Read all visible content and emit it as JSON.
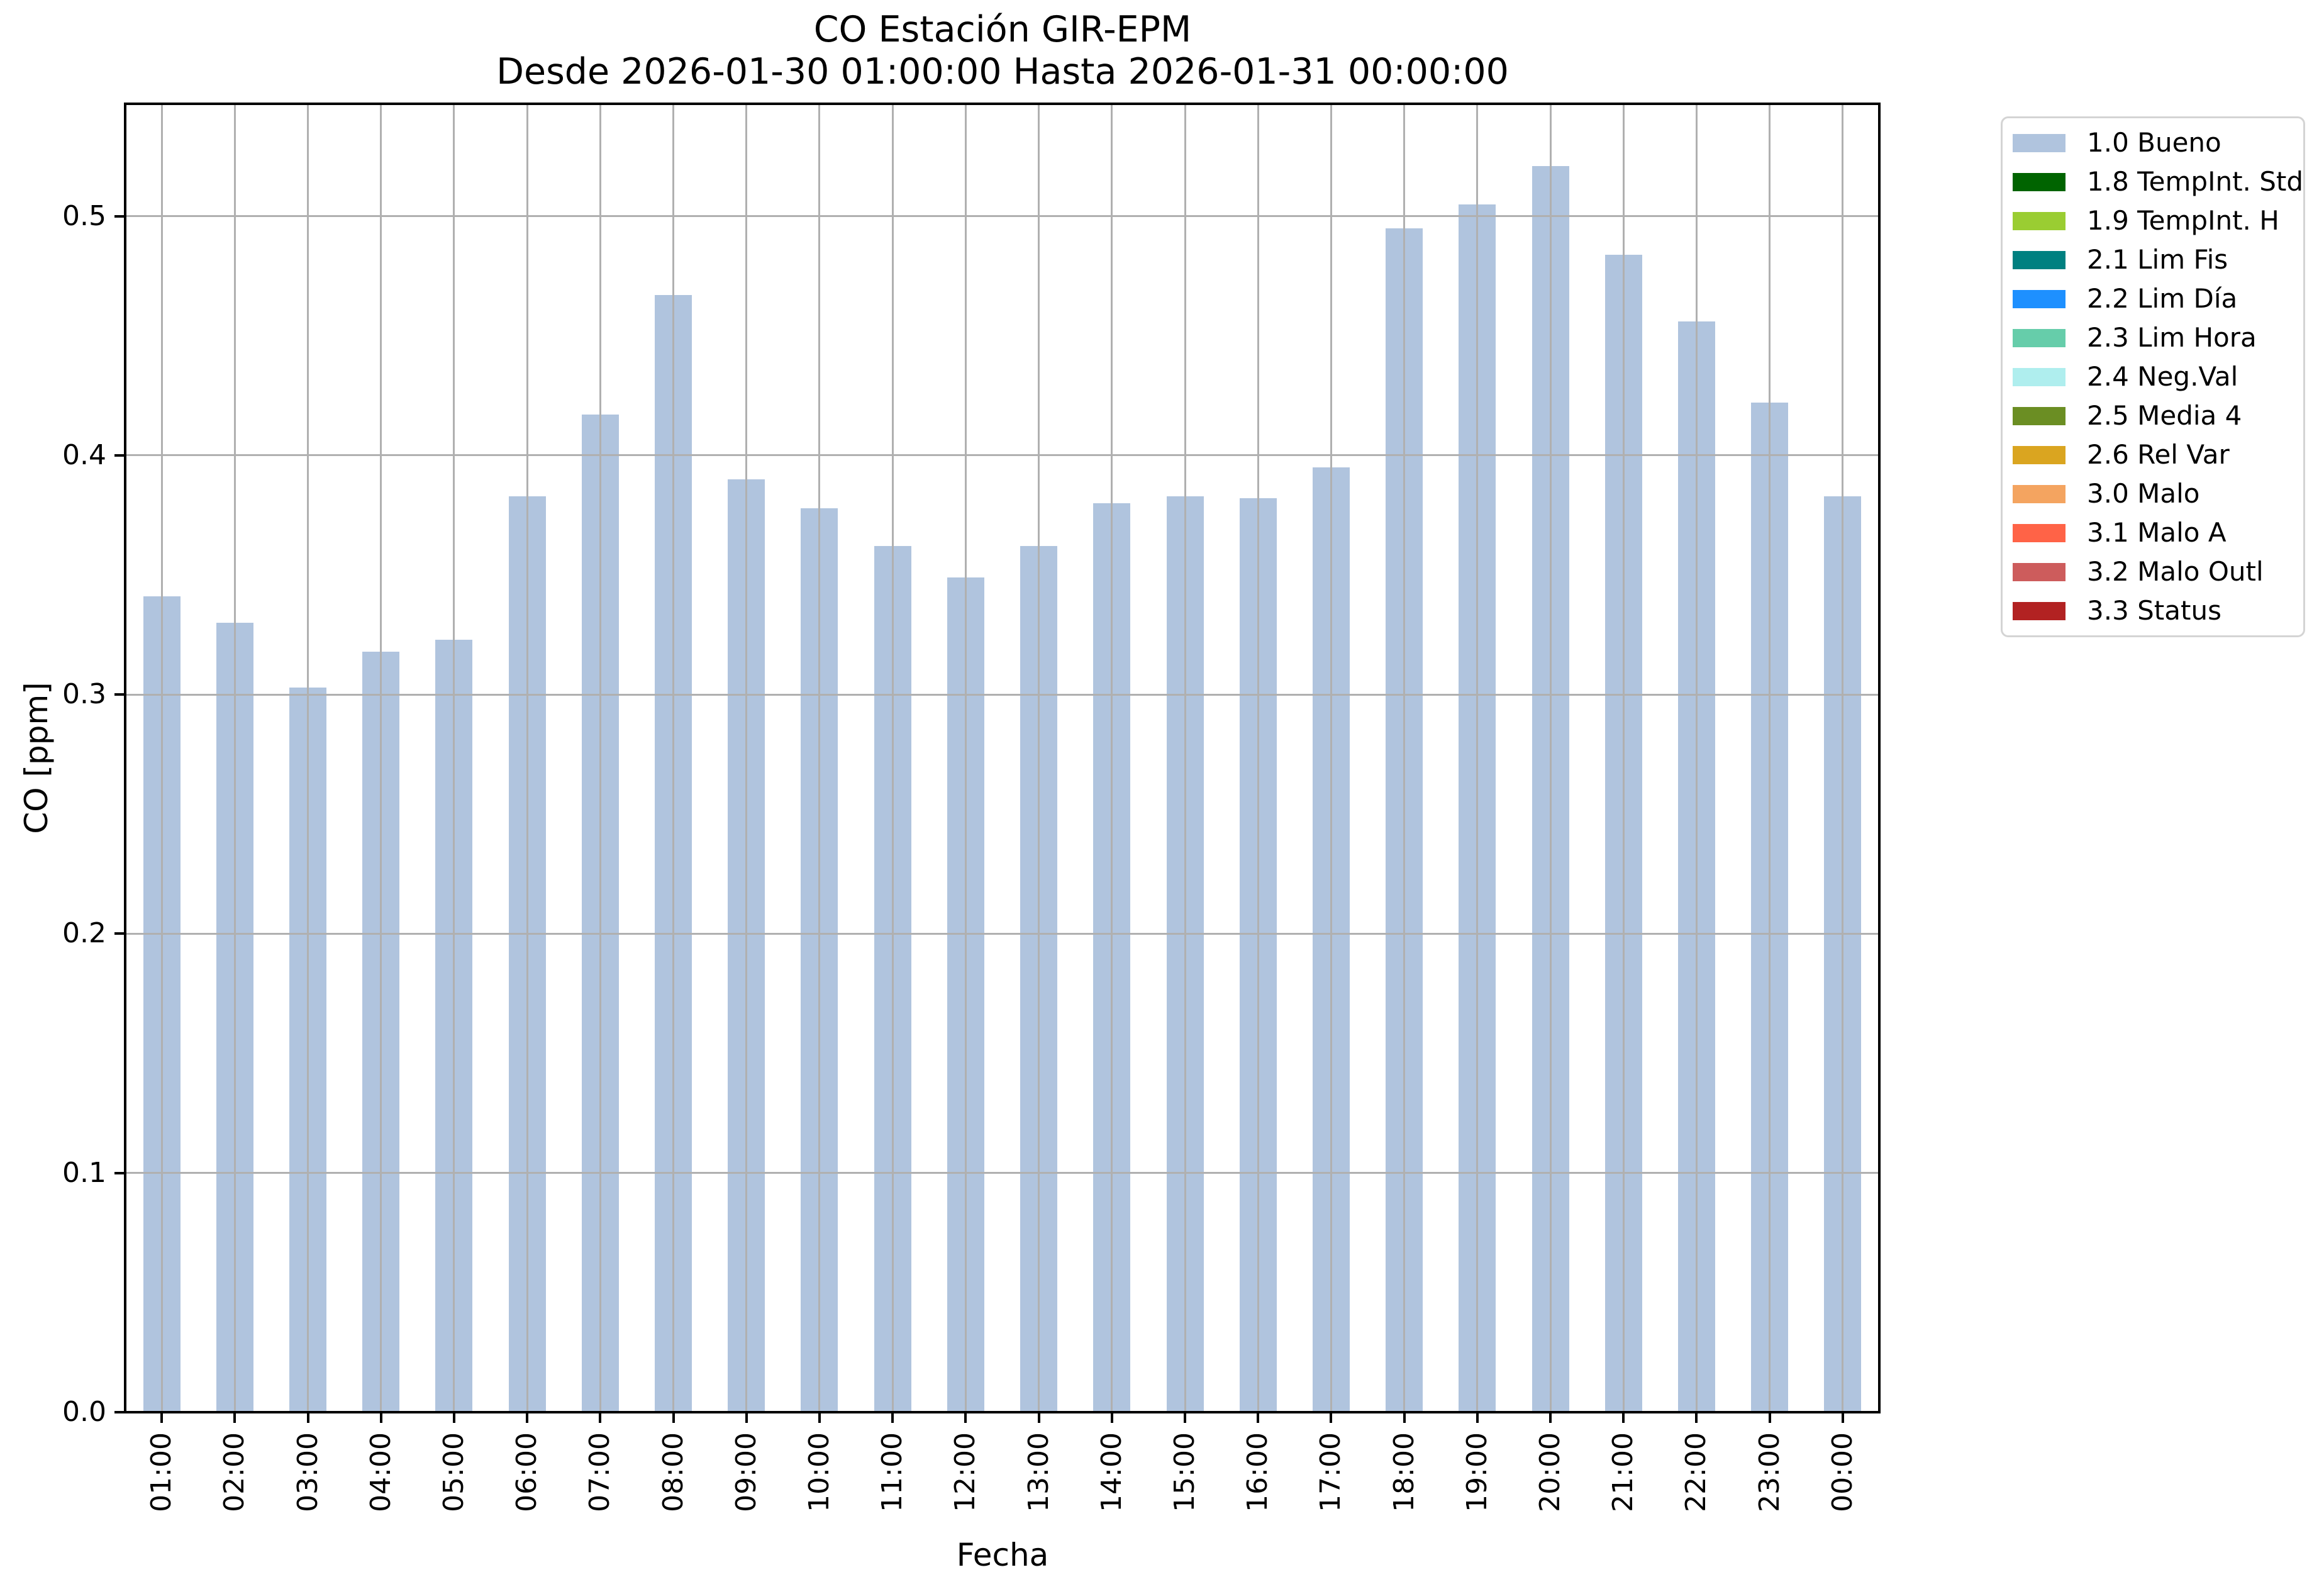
{
  "chart_data": {
    "type": "bar",
    "title": "CO Estación GIR-EPM",
    "subtitle": "Desde 2026-01-30 01:00:00 Hasta 2026-01-31 00:00:00",
    "xlabel": "Fecha",
    "ylabel": "CO [ppm]",
    "categories": [
      "01:00",
      "02:00",
      "03:00",
      "04:00",
      "05:00",
      "06:00",
      "07:00",
      "08:00",
      "09:00",
      "10:00",
      "11:00",
      "12:00",
      "13:00",
      "14:00",
      "15:00",
      "16:00",
      "17:00",
      "18:00",
      "19:00",
      "20:00",
      "21:00",
      "22:00",
      "23:00",
      "00:00"
    ],
    "series": [
      {
        "name": "1.0 Bueno",
        "color": "#b0c4de",
        "values": [
          0.341,
          0.33,
          0.303,
          0.318,
          0.323,
          0.383,
          0.417,
          0.467,
          0.39,
          0.378,
          0.362,
          0.349,
          0.362,
          0.38,
          0.383,
          0.382,
          0.395,
          0.495,
          0.505,
          0.521,
          0.484,
          0.456,
          0.422,
          0.383
        ]
      }
    ],
    "ylim": [
      0,
      0.547
    ],
    "ytick_values": [
      0.0,
      0.1,
      0.2,
      0.3,
      0.4,
      0.5
    ],
    "ytick_labels": [
      "0.0",
      "0.1",
      "0.2",
      "0.3",
      "0.4",
      "0.5"
    ],
    "grid": true,
    "grid_on_top_of_bars": true,
    "legend_position": "outside-upper-right",
    "legend": [
      {
        "label": "1.0 Bueno",
        "color": "#b0c4de"
      },
      {
        "label": "1.8 TempInt. Std",
        "color": "#006400"
      },
      {
        "label": "1.9 TempInt. H",
        "color": "#9acd32"
      },
      {
        "label": "2.1 Lim Fis",
        "color": "#008080"
      },
      {
        "label": "2.2 Lim Día",
        "color": "#1e90ff"
      },
      {
        "label": "2.3 Lim Hora",
        "color": "#66cdaa"
      },
      {
        "label": "2.4 Neg.Val",
        "color": "#afeeee"
      },
      {
        "label": "2.5 Media 4",
        "color": "#6b8e23"
      },
      {
        "label": "2.6 Rel Var",
        "color": "#daa520"
      },
      {
        "label": "3.0 Malo",
        "color": "#f4a460"
      },
      {
        "label": "3.1 Malo A",
        "color": "#ff6347"
      },
      {
        "label": "3.2 Malo Outl",
        "color": "#cd5c5c"
      },
      {
        "label": "3.3 Status",
        "color": "#b22222"
      }
    ],
    "colors": {
      "background": "#ffffff",
      "axis": "#000000",
      "grid": "#b0b0b0",
      "text": "#000000",
      "legend_border": "#d4d4d4",
      "bar": "#b0c4de"
    }
  }
}
